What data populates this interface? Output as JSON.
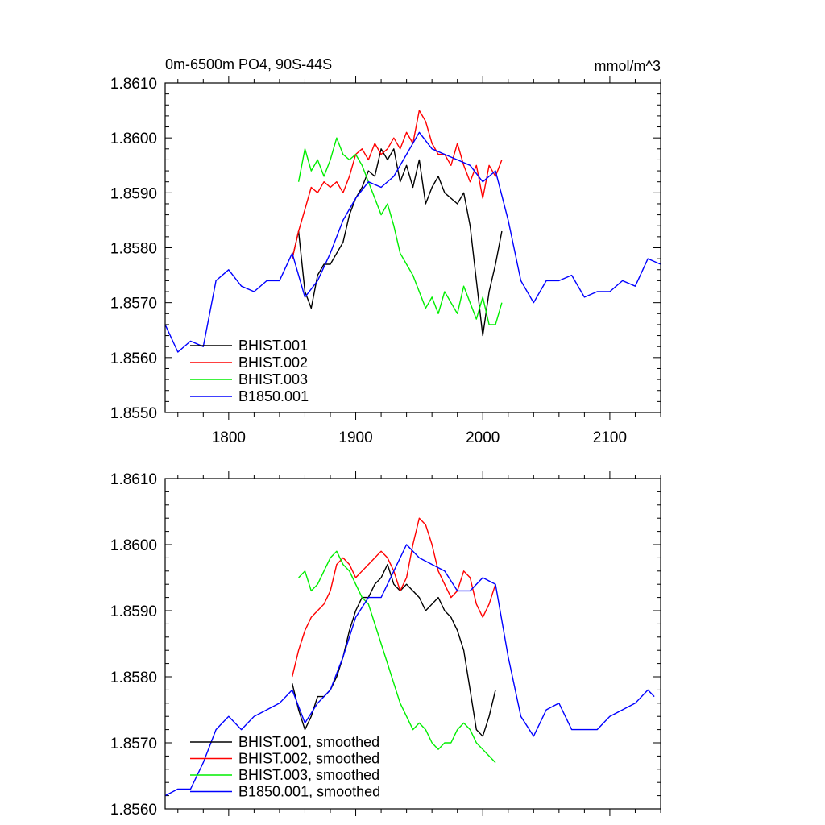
{
  "chart_data": [
    {
      "type": "line",
      "title": "0m-6500m PO4, 90S-44S",
      "units": "mmol/m^3",
      "xlabel": "",
      "ylabel": "",
      "xlim": [
        1750,
        2140
      ],
      "ylim": [
        1.855,
        1.861
      ],
      "xticks": [
        1800,
        1900,
        2000,
        2100
      ],
      "xtick_labels": [
        "1800",
        "1900",
        "2000",
        "2100"
      ],
      "yticks": [
        1.855,
        1.856,
        1.857,
        1.858,
        1.859,
        1.86,
        1.861
      ],
      "ytick_labels": [
        "1.8550",
        "1.8560",
        "1.8570",
        "1.8580",
        "1.8590",
        "1.8600",
        "1.8610"
      ],
      "legend_position": "bottom-left",
      "series": [
        {
          "name": "BHIST.001",
          "color": "#000000",
          "x": [
            1850,
            1855,
            1860,
            1865,
            1870,
            1875,
            1880,
            1885,
            1890,
            1895,
            1900,
            1905,
            1910,
            1915,
            1920,
            1925,
            1930,
            1935,
            1940,
            1945,
            1950,
            1955,
            1960,
            1965,
            1970,
            1975,
            1980,
            1985,
            1990,
            1995,
            2000,
            2005,
            2010,
            2015
          ],
          "values": [
            1.8578,
            1.8583,
            1.8572,
            1.8569,
            1.8575,
            1.8577,
            1.8577,
            1.8579,
            1.8581,
            1.8586,
            1.8589,
            1.8591,
            1.8594,
            1.8593,
            1.8598,
            1.8596,
            1.8598,
            1.8592,
            1.8595,
            1.8591,
            1.8596,
            1.8588,
            1.8591,
            1.8593,
            1.859,
            1.8589,
            1.8588,
            1.859,
            1.8584,
            1.8574,
            1.8564,
            1.8572,
            1.8577,
            1.8583
          ]
        },
        {
          "name": "BHIST.002",
          "color": "#ff0000",
          "x": [
            1850,
            1855,
            1860,
            1865,
            1870,
            1875,
            1880,
            1885,
            1890,
            1895,
            1900,
            1905,
            1910,
            1915,
            1920,
            1925,
            1930,
            1935,
            1940,
            1945,
            1950,
            1955,
            1960,
            1965,
            1970,
            1975,
            1980,
            1985,
            1990,
            1995,
            2000,
            2005,
            2010,
            2015
          ],
          "values": [
            1.8578,
            1.8583,
            1.8587,
            1.8591,
            1.859,
            1.8592,
            1.8591,
            1.8592,
            1.859,
            1.8593,
            1.8597,
            1.8598,
            1.8596,
            1.8599,
            1.8597,
            1.8598,
            1.86,
            1.8598,
            1.8601,
            1.8599,
            1.8605,
            1.8603,
            1.8599,
            1.8597,
            1.8597,
            1.8595,
            1.8599,
            1.8595,
            1.8592,
            1.8595,
            1.8589,
            1.8595,
            1.8593,
            1.8596
          ]
        },
        {
          "name": "BHIST.003",
          "color": "#00ee00",
          "x": [
            1855,
            1860,
            1865,
            1870,
            1875,
            1880,
            1885,
            1890,
            1895,
            1900,
            1905,
            1910,
            1915,
            1920,
            1925,
            1930,
            1935,
            1940,
            1945,
            1950,
            1955,
            1960,
            1965,
            1970,
            1975,
            1980,
            1985,
            1990,
            1995,
            2000,
            2005,
            2010,
            2015
          ],
          "values": [
            1.8592,
            1.8598,
            1.8594,
            1.8596,
            1.8593,
            1.8596,
            1.86,
            1.8597,
            1.8596,
            1.8597,
            1.8595,
            1.8592,
            1.8589,
            1.8586,
            1.8588,
            1.8584,
            1.8579,
            1.8577,
            1.8575,
            1.8572,
            1.8569,
            1.8571,
            1.8568,
            1.8572,
            1.857,
            1.8568,
            1.8573,
            1.857,
            1.8567,
            1.8571,
            1.8566,
            1.8566,
            1.857
          ]
        },
        {
          "name": "B1850.001",
          "color": "#0000ff",
          "x": [
            1750,
            1760,
            1770,
            1780,
            1790,
            1800,
            1810,
            1820,
            1830,
            1840,
            1850,
            1860,
            1870,
            1880,
            1890,
            1900,
            1910,
            1920,
            1930,
            1940,
            1950,
            1960,
            1970,
            1980,
            1990,
            2000,
            2010,
            2020,
            2030,
            2040,
            2050,
            2060,
            2070,
            2080,
            2090,
            2100,
            2110,
            2120,
            2130,
            2140
          ],
          "values": [
            1.8566,
            1.8561,
            1.8563,
            1.8562,
            1.8574,
            1.8576,
            1.8573,
            1.8572,
            1.8574,
            1.8574,
            1.8579,
            1.8571,
            1.8574,
            1.8579,
            1.8585,
            1.8589,
            1.8592,
            1.8591,
            1.8593,
            1.8597,
            1.8601,
            1.8598,
            1.8597,
            1.8596,
            1.8595,
            1.8592,
            1.8594,
            1.8585,
            1.8574,
            1.857,
            1.8574,
            1.8574,
            1.8575,
            1.8571,
            1.8572,
            1.8572,
            1.8574,
            1.8573,
            1.8578,
            1.8577
          ]
        }
      ]
    },
    {
      "type": "line",
      "title": "",
      "xlabel": "",
      "ylabel": "",
      "xlim": [
        1750,
        2140
      ],
      "ylim": [
        1.856,
        1.861
      ],
      "xticks": [
        1800,
        1900,
        2000,
        2100
      ],
      "yticks": [
        1.856,
        1.857,
        1.858,
        1.859,
        1.86,
        1.861
      ],
      "ytick_labels": [
        "1.8560",
        "1.8570",
        "1.8580",
        "1.8590",
        "1.8600",
        "1.8610"
      ],
      "legend_position": "bottom-left",
      "series": [
        {
          "name": "BHIST.001, smoothed",
          "color": "#000000",
          "x": [
            1850,
            1855,
            1860,
            1865,
            1870,
            1875,
            1880,
            1885,
            1890,
            1895,
            1900,
            1905,
            1910,
            1915,
            1920,
            1925,
            1930,
            1935,
            1940,
            1945,
            1950,
            1955,
            1960,
            1965,
            1970,
            1975,
            1980,
            1985,
            1990,
            1995,
            2000,
            2005,
            2010
          ],
          "values": [
            1.8579,
            1.8575,
            1.8572,
            1.8574,
            1.8577,
            1.8577,
            1.8578,
            1.858,
            1.8583,
            1.8587,
            1.859,
            1.8592,
            1.8592,
            1.8594,
            1.8595,
            1.8597,
            1.8594,
            1.8593,
            1.8594,
            1.8593,
            1.8592,
            1.859,
            1.8591,
            1.8592,
            1.859,
            1.8589,
            1.8587,
            1.8584,
            1.8578,
            1.8572,
            1.8571,
            1.8574,
            1.8578
          ]
        },
        {
          "name": "BHIST.002, smoothed",
          "color": "#ff0000",
          "x": [
            1850,
            1855,
            1860,
            1865,
            1870,
            1875,
            1880,
            1885,
            1890,
            1895,
            1900,
            1905,
            1910,
            1915,
            1920,
            1925,
            1930,
            1935,
            1940,
            1945,
            1950,
            1955,
            1960,
            1965,
            1970,
            1975,
            1980,
            1985,
            1990,
            1995,
            2000,
            2005,
            2010
          ],
          "values": [
            1.858,
            1.8584,
            1.8587,
            1.8589,
            1.859,
            1.8591,
            1.8593,
            1.8597,
            1.8598,
            1.8597,
            1.8595,
            1.8596,
            1.8597,
            1.8598,
            1.8599,
            1.8598,
            1.8596,
            1.8593,
            1.8595,
            1.86,
            1.8604,
            1.8603,
            1.86,
            1.8596,
            1.8594,
            1.8592,
            1.8593,
            1.8596,
            1.8595,
            1.8591,
            1.8589,
            1.8591,
            1.8594
          ]
        },
        {
          "name": "BHIST.003, smoothed",
          "color": "#00ee00",
          "x": [
            1855,
            1860,
            1865,
            1870,
            1875,
            1880,
            1885,
            1890,
            1895,
            1900,
            1905,
            1910,
            1915,
            1920,
            1925,
            1930,
            1935,
            1940,
            1945,
            1950,
            1955,
            1960,
            1965,
            1970,
            1975,
            1980,
            1985,
            1990,
            1995,
            2000,
            2005,
            2010
          ],
          "values": [
            1.8595,
            1.8596,
            1.8593,
            1.8594,
            1.8596,
            1.8598,
            1.8599,
            1.8597,
            1.8596,
            1.8594,
            1.8592,
            1.8591,
            1.8588,
            1.8585,
            1.8582,
            1.8579,
            1.8576,
            1.8574,
            1.8572,
            1.8573,
            1.8572,
            1.857,
            1.8569,
            1.857,
            1.857,
            1.8572,
            1.8573,
            1.8572,
            1.857,
            1.8569,
            1.8568,
            1.8567
          ]
        },
        {
          "name": "B1850.001, smoothed",
          "color": "#0000ff",
          "x": [
            1750,
            1760,
            1770,
            1780,
            1790,
            1800,
            1810,
            1820,
            1830,
            1840,
            1850,
            1860,
            1870,
            1880,
            1890,
            1900,
            1910,
            1920,
            1930,
            1940,
            1950,
            1960,
            1970,
            1980,
            1990,
            2000,
            2010,
            2020,
            2030,
            2040,
            2050,
            2060,
            2070,
            2080,
            2090,
            2100,
            2110,
            2120,
            2130,
            2135
          ],
          "values": [
            1.8562,
            1.8563,
            1.8563,
            1.8567,
            1.8572,
            1.8574,
            1.8572,
            1.8574,
            1.8575,
            1.8576,
            1.8578,
            1.8573,
            1.8576,
            1.8578,
            1.8583,
            1.8589,
            1.8592,
            1.8592,
            1.8596,
            1.86,
            1.8598,
            1.8597,
            1.8596,
            1.8593,
            1.8593,
            1.8595,
            1.8594,
            1.8583,
            1.8574,
            1.8571,
            1.8575,
            1.8576,
            1.8572,
            1.8572,
            1.8572,
            1.8574,
            1.8575,
            1.8576,
            1.8578,
            1.8577
          ]
        }
      ]
    }
  ]
}
